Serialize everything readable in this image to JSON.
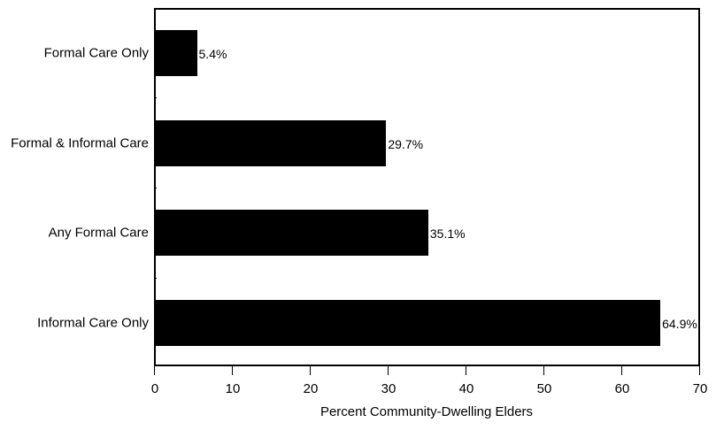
{
  "chart_data": {
    "type": "bar",
    "orientation": "horizontal",
    "title": "",
    "xlabel": "Percent Community-Dwelling Elders",
    "ylabel": "",
    "xlim": [
      0,
      70
    ],
    "xticks": [
      0,
      10,
      20,
      30,
      40,
      50,
      60,
      70
    ],
    "grid": false,
    "legend": null,
    "categories": [
      "Formal Care Only",
      "Formal & Informal Care",
      "Any Formal Care",
      "Informal Care Only"
    ],
    "values": [
      5.4,
      29.7,
      35.1,
      64.9
    ],
    "value_labels": [
      "5.4%",
      "29.7%",
      "35.1%",
      "64.9%"
    ],
    "bar_color": "#000000"
  }
}
